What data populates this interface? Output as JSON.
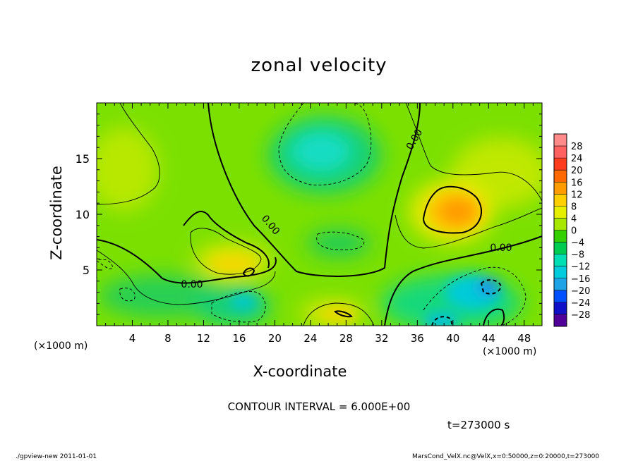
{
  "chart_data": {
    "type": "heatmap",
    "title": "zonal velocity",
    "xlabel": "X-coordinate",
    "ylabel": "Z-coordinate",
    "x_unit_label": "(×1000 m)",
    "x_unit_label_right": "(×1000 m)",
    "xlim": [
      0,
      50
    ],
    "ylim": [
      0,
      20
    ],
    "x_ticks": [
      4,
      8,
      12,
      16,
      20,
      24,
      28,
      32,
      36,
      40,
      44,
      48
    ],
    "y_ticks": [
      5,
      10,
      15
    ],
    "colorbar_levels": [
      28,
      24,
      20,
      16,
      12,
      8,
      4,
      0,
      -4,
      -8,
      -12,
      -16,
      -20,
      -24,
      -28
    ],
    "colorbar_colors": [
      "#ff8a8a",
      "#ff6060",
      "#ff3b1e",
      "#ff6a00",
      "#ff9c00",
      "#ffd000",
      "#e7ef00",
      "#a8e800",
      "#35d000",
      "#00cc52",
      "#00dfb4",
      "#00ccdd",
      "#1ea4e6",
      "#0050ff",
      "#1010c8",
      "#52009a"
    ],
    "contour_labels": [
      "0.00",
      "0.00",
      "0.00",
      "0.00"
    ],
    "contour_interval": "CONTOUR INTERVAL = 6.000E+00",
    "time": "t=273000 s"
  },
  "footer": {
    "left": "./gpview-new   2011-01-01",
    "right": "MarsCond_VelX.nc@VelX,x=0:50000,z=0:20000,t=273000"
  }
}
